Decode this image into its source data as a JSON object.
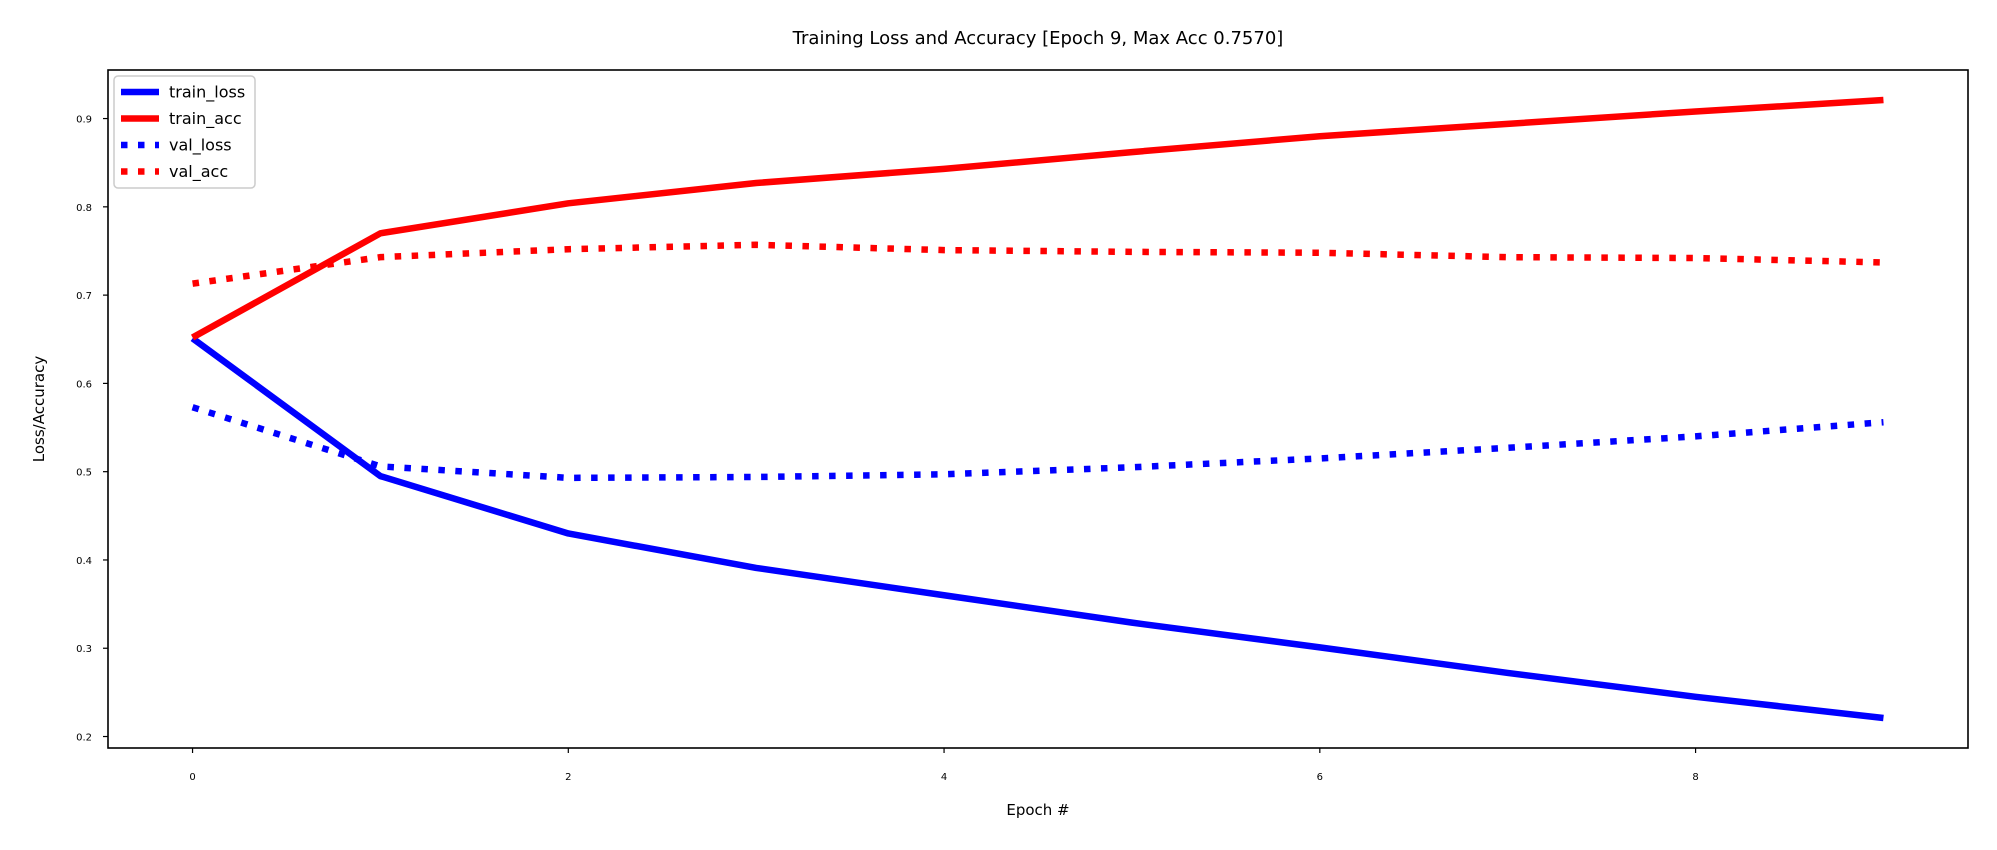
{
  "chart_data": {
    "type": "line",
    "title": "Training Loss and Accuracy [Epoch 9, Max Acc 0.7570]",
    "xlabel": "Epoch #",
    "ylabel": "Loss/Accuracy",
    "xlim": [
      -0.45,
      9.45
    ],
    "ylim": [
      0.187,
      0.955
    ],
    "x_ticks": [
      0,
      2,
      4,
      6,
      8
    ],
    "y_ticks": [
      0.2,
      0.3,
      0.4,
      0.5,
      0.6,
      0.7,
      0.8,
      0.9
    ],
    "x_tick_labels": [
      "0",
      "2",
      "4",
      "6",
      "8"
    ],
    "y_tick_labels": [
      "0.2",
      "0.3",
      "0.4",
      "0.5",
      "0.6",
      "0.7",
      "0.8",
      "0.9"
    ],
    "grid": false,
    "legend_position": "top-left",
    "x": [
      0,
      1,
      2,
      3,
      4,
      5,
      6,
      7,
      8,
      9
    ],
    "series": [
      {
        "name": "train_loss",
        "color": "#0000ff",
        "style": "solid",
        "values": [
          0.651,
          0.495,
          0.43,
          0.391,
          0.36,
          0.329,
          0.301,
          0.272,
          0.245,
          0.221
        ]
      },
      {
        "name": "train_acc",
        "color": "#ff0000",
        "style": "solid",
        "values": [
          0.652,
          0.77,
          0.804,
          0.827,
          0.843,
          0.862,
          0.88,
          0.894,
          0.908,
          0.921
        ]
      },
      {
        "name": "val_loss",
        "color": "#0000ff",
        "style": "dotted",
        "values": [
          0.573,
          0.506,
          0.493,
          0.494,
          0.497,
          0.505,
          0.515,
          0.527,
          0.54,
          0.556
        ]
      },
      {
        "name": "val_acc",
        "color": "#ff0000",
        "style": "dotted",
        "values": [
          0.713,
          0.743,
          0.752,
          0.757,
          0.751,
          0.749,
          0.748,
          0.743,
          0.742,
          0.737
        ]
      }
    ]
  }
}
